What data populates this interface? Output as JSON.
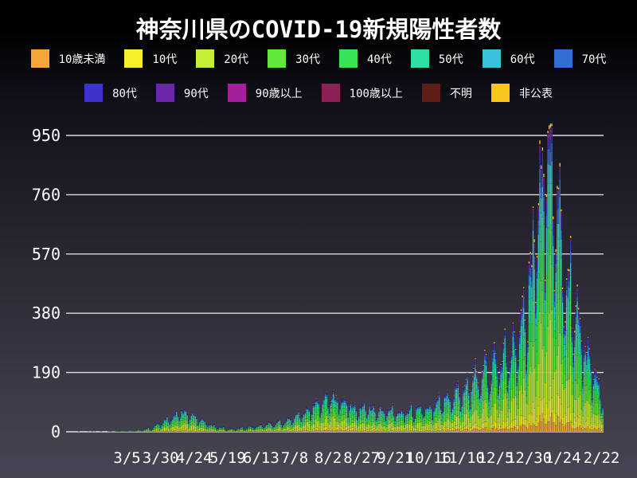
{
  "title": "神奈川県のCOVID-19新規陽性者数",
  "colors": {
    "background_top": "#000000",
    "background_bottom": "#484453",
    "grid": "#ebebf0",
    "text": "#ffffff"
  },
  "legend": {
    "row1": [
      {
        "label": "10歳未満",
        "color": "#f5a73a"
      },
      {
        "label": "10代",
        "color": "#f7ef2c"
      },
      {
        "label": "20代",
        "color": "#c4ee35"
      },
      {
        "label": "30代",
        "color": "#60e93a"
      },
      {
        "label": "40代",
        "color": "#38e356"
      },
      {
        "label": "50代",
        "color": "#2edfa6"
      },
      {
        "label": "60代",
        "color": "#38c0dd"
      },
      {
        "label": "70代",
        "color": "#3170d2"
      }
    ],
    "row2": [
      {
        "label": "80代",
        "color": "#3b33cb"
      },
      {
        "label": "90代",
        "color": "#6a28a9"
      },
      {
        "label": "90歳以上",
        "color": "#a21f9d"
      },
      {
        "label": "100歳以上",
        "color": "#8c2153"
      },
      {
        "label": "不明",
        "color": "#5e1d16"
      },
      {
        "label": "非公表",
        "color": "#fcc41f"
      }
    ]
  },
  "chart_data": {
    "type": "bar",
    "stacked": true,
    "title": "神奈川県のCOVID-19新規陽性者数",
    "xlabel": "",
    "ylabel": "",
    "ylim": [
      0,
      1000
    ],
    "yticks": [
      0,
      190,
      380,
      570,
      760,
      950
    ],
    "grid": true,
    "legend_position": "top",
    "peak_daily_total": 985,
    "x_axis": {
      "tick_labels": [
        "3/5",
        "3/30",
        "4/24",
        "5/19",
        "6/13",
        "7/8",
        "8/2",
        "8/27",
        "9/21",
        "10/16",
        "11/10",
        "12/5",
        "12/30",
        "1/24",
        "2/22"
      ],
      "tick_day_index": [
        45,
        70,
        95,
        120,
        145,
        170,
        195,
        220,
        245,
        270,
        295,
        320,
        345,
        370,
        399
      ],
      "days_total": 401
    },
    "series": [
      {
        "name": "10歳未満",
        "color": "#f5a73a",
        "share": 0.045
      },
      {
        "name": "10代",
        "color": "#f7ef2c",
        "share": 0.075
      },
      {
        "name": "20代",
        "color": "#c4ee35",
        "share": 0.225
      },
      {
        "name": "30代",
        "color": "#60e93a",
        "share": 0.17
      },
      {
        "name": "40代",
        "color": "#38e356",
        "share": 0.15
      },
      {
        "name": "50代",
        "color": "#2edfa6",
        "share": 0.13
      },
      {
        "name": "60代",
        "color": "#38c0dd",
        "share": 0.075
      },
      {
        "name": "70代",
        "color": "#3170d2",
        "share": 0.05
      },
      {
        "name": "80代",
        "color": "#3b33cb",
        "share": 0.038
      },
      {
        "name": "90代",
        "color": "#6a28a9",
        "share": 0.018
      },
      {
        "name": "90歳以上",
        "color": "#a21f9d",
        "share": 0.006
      },
      {
        "name": "100歳以上",
        "color": "#8c2153",
        "share": 0.002
      },
      {
        "name": "不明",
        "color": "#5e1d16",
        "share": 0.004
      },
      {
        "name": "非公表",
        "color": "#fcc41f",
        "share": 0.012
      }
    ],
    "envelope_anchors": [
      [
        0,
        0
      ],
      [
        14,
        0.4
      ],
      [
        24,
        1
      ],
      [
        34,
        2
      ],
      [
        45,
        4
      ],
      [
        52,
        6
      ],
      [
        58,
        9
      ],
      [
        63,
        14
      ],
      [
        68,
        24
      ],
      [
        73,
        40
      ],
      [
        78,
        52
      ],
      [
        83,
        62
      ],
      [
        87,
        68
      ],
      [
        91,
        58
      ],
      [
        97,
        46
      ],
      [
        103,
        32
      ],
      [
        110,
        20
      ],
      [
        117,
        13
      ],
      [
        124,
        10
      ],
      [
        131,
        13
      ],
      [
        138,
        17
      ],
      [
        145,
        22
      ],
      [
        152,
        27
      ],
      [
        159,
        32
      ],
      [
        166,
        40
      ],
      [
        172,
        50
      ],
      [
        178,
        68
      ],
      [
        184,
        88
      ],
      [
        190,
        108
      ],
      [
        196,
        115
      ],
      [
        202,
        105
      ],
      [
        208,
        97
      ],
      [
        214,
        90
      ],
      [
        220,
        84
      ],
      [
        227,
        80
      ],
      [
        234,
        74
      ],
      [
        241,
        68
      ],
      [
        248,
        66
      ],
      [
        255,
        70
      ],
      [
        262,
        76
      ],
      [
        269,
        84
      ],
      [
        276,
        95
      ],
      [
        283,
        108
      ],
      [
        290,
        125
      ],
      [
        295,
        140
      ],
      [
        300,
        160
      ],
      [
        305,
        185
      ],
      [
        310,
        205
      ],
      [
        315,
        218
      ],
      [
        320,
        230
      ],
      [
        326,
        248
      ],
      [
        332,
        272
      ],
      [
        338,
        320
      ],
      [
        343,
        420
      ],
      [
        347,
        550
      ],
      [
        351,
        690
      ],
      [
        355,
        840
      ],
      [
        358,
        910
      ],
      [
        361,
        880
      ],
      [
        364,
        800
      ],
      [
        367,
        710
      ],
      [
        370,
        600
      ],
      [
        374,
        500
      ],
      [
        378,
        430
      ],
      [
        382,
        360
      ],
      [
        386,
        300
      ],
      [
        390,
        245
      ],
      [
        394,
        185
      ],
      [
        397,
        140
      ],
      [
        399,
        110
      ],
      [
        401,
        95
      ]
    ],
    "weekday_factors": [
      0.55,
      0.74,
      0.96,
      1.07,
      1.12,
      1.17,
      0.86
    ]
  }
}
